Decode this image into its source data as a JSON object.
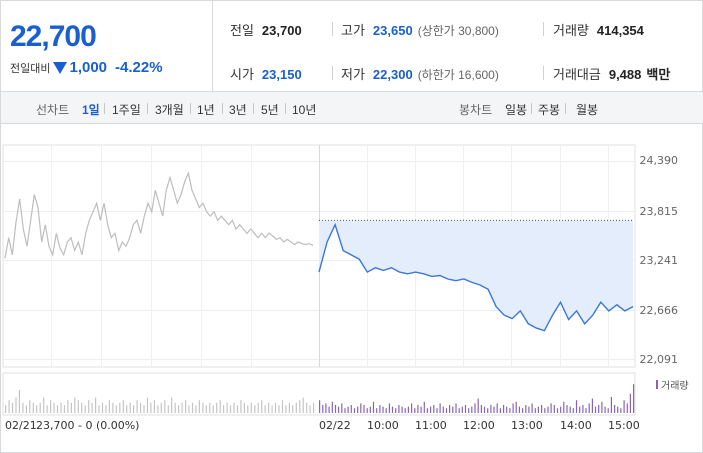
{
  "summary": {
    "price": "22,700",
    "change_label": "전일대비",
    "change_value": "1,000",
    "change_pct": "-4.22%",
    "change_direction": "down",
    "prev_close": {
      "label": "전일",
      "value": "23,700"
    },
    "high": {
      "label": "고가",
      "value": "23,650",
      "sub": "(상한가 30,800)"
    },
    "volume": {
      "label": "거래량",
      "value": "414,354"
    },
    "open": {
      "label": "시가",
      "value": "23,150"
    },
    "low": {
      "label": "저가",
      "value": "22,300",
      "sub": "(하한가 16,600)"
    },
    "amount": {
      "label": "거래대금",
      "value": "9,488",
      "unit": "백만"
    }
  },
  "toolbar": {
    "line_chart_label": "선차트",
    "periods": [
      "1일",
      "1주일",
      "3개월",
      "1년",
      "3년",
      "5년",
      "10년"
    ],
    "active_period": "1일",
    "candle_chart_label": "봉차트",
    "candle_periods": [
      "일봉",
      "주봉",
      "월봉"
    ]
  },
  "chart": {
    "y_ticks": [
      "24,390",
      "23,815",
      "23,241",
      "22,666",
      "22,091"
    ],
    "x_ticks": [
      "02/22",
      "10:00",
      "11:00",
      "12:00",
      "13:00",
      "14:00",
      "15:00"
    ],
    "prev_day_label": "02/21",
    "prev_day_info": "23,700 - 0 (0.00%)",
    "volume_legend": "거래량"
  },
  "colors": {
    "accent": "#1a5fd0",
    "line_today": "#3b78d6",
    "area_today": "#e4edfb",
    "line_prev": "#bdbdbd",
    "volume_today": "#8a63b8",
    "volume_prev": "#c4c4c4"
  },
  "chart_data": {
    "type": "line",
    "ylim": [
      22091,
      24390
    ],
    "base_value": 23700,
    "series": [
      {
        "name": "02/21",
        "values": [
          23260,
          23500,
          23300,
          23680,
          23950,
          23600,
          23400,
          23700,
          24000,
          23850,
          23450,
          23650,
          23400,
          23300,
          23550,
          23380,
          23300,
          23450,
          23500,
          23350,
          23450,
          23300,
          23550,
          23700,
          23800,
          23900,
          23700,
          23900,
          23650,
          23500,
          23550,
          23350,
          23450,
          23400,
          23500,
          23650,
          23700,
          23550,
          23750,
          23900,
          23800,
          24050,
          23900,
          23750,
          24050,
          24200,
          24050,
          23900,
          24000,
          24150,
          24250,
          24050,
          23950,
          23850,
          23900,
          23800,
          23750,
          23800,
          23700,
          23750,
          23700,
          23650,
          23700,
          23600,
          23650,
          23600,
          23550,
          23600,
          23550,
          23500,
          23550,
          23500,
          23550,
          23520,
          23480,
          23500,
          23450,
          23480,
          23450,
          23420,
          23450,
          23430,
          23420,
          23430,
          23410
        ]
      },
      {
        "name": "02/22",
        "x": [
          "09:00",
          "09:10",
          "09:20",
          "09:30",
          "09:40",
          "09:50",
          "10:00",
          "10:10",
          "10:20",
          "10:30",
          "10:40",
          "10:50",
          "11:00",
          "11:10",
          "11:20",
          "11:30",
          "11:40",
          "11:50",
          "12:00",
          "12:10",
          "12:20",
          "12:30",
          "12:40",
          "12:50",
          "13:00",
          "13:10",
          "13:20",
          "13:30",
          "13:40",
          "13:50",
          "14:00",
          "14:10",
          "14:20",
          "14:30",
          "14:40",
          "14:50",
          "15:00",
          "15:10",
          "15:20",
          "15:30"
        ],
        "values": [
          23100,
          23450,
          23650,
          23350,
          23300,
          23250,
          23100,
          23150,
          23120,
          23150,
          23100,
          23080,
          23100,
          23080,
          23050,
          23060,
          23020,
          23000,
          23020,
          22980,
          22950,
          22900,
          22700,
          22600,
          22560,
          22650,
          22500,
          22450,
          22420,
          22600,
          22750,
          22550,
          22650,
          22500,
          22600,
          22750,
          22650,
          22720,
          22650,
          22700
        ]
      }
    ],
    "volume": {
      "unit": "relative",
      "prev": [
        3,
        5,
        4,
        6,
        9,
        4,
        3,
        5,
        4,
        3,
        4,
        6,
        3,
        5,
        4,
        3,
        4,
        3,
        5,
        4,
        6,
        5,
        4,
        3,
        5,
        4,
        6,
        3,
        4,
        3,
        5,
        4,
        3,
        4,
        5,
        3,
        4,
        3,
        5,
        4,
        3,
        6,
        4,
        5,
        3,
        4,
        5,
        3,
        6,
        4,
        3,
        4,
        5,
        3,
        4,
        3,
        5,
        4,
        3,
        4,
        3,
        4,
        5,
        3,
        4,
        3,
        4,
        3,
        5,
        4,
        3,
        4,
        3,
        4,
        5,
        3,
        4,
        3,
        4,
        3,
        5,
        3,
        4,
        3,
        4,
        5,
        6,
        4,
        3,
        4
      ],
      "today": [
        8,
        5,
        6,
        4,
        7,
        5,
        4,
        6,
        3,
        4,
        5,
        3,
        4,
        6,
        5,
        3,
        4,
        7,
        3,
        5,
        4,
        3,
        6,
        4,
        3,
        5,
        4,
        3,
        4,
        6,
        3,
        5,
        4,
        7,
        3,
        4,
        5,
        3,
        6,
        4,
        3,
        5,
        4,
        6,
        3,
        4,
        5,
        3,
        4,
        6,
        9,
        5,
        4,
        3,
        5,
        4,
        6,
        3,
        5,
        4,
        3,
        6,
        7,
        4,
        3,
        5,
        4,
        6,
        3,
        4,
        5,
        3,
        4,
        6,
        5,
        3,
        4,
        7,
        5,
        4,
        3,
        8,
        4,
        5,
        3,
        6,
        9,
        4,
        5,
        7,
        4,
        3,
        10,
        5,
        4,
        3,
        8,
        6,
        12,
        18
      ]
    }
  }
}
